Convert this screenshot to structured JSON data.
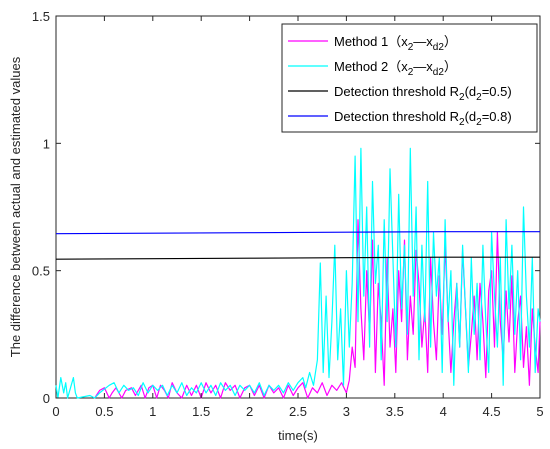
{
  "chart_data": {
    "type": "line",
    "title": "",
    "xlabel": "time(s)",
    "ylabel": "The difference between actual and estimated values",
    "xlim": [
      0,
      5
    ],
    "ylim": [
      0,
      1.5
    ],
    "xticks": [
      0,
      0.5,
      1,
      1.5,
      2,
      2.5,
      3,
      3.5,
      4,
      4.5,
      5
    ],
    "xtick_labels": [
      "0",
      "0.5",
      "1",
      "1.5",
      "2",
      "2.5",
      "3",
      "3.5",
      "4",
      "4.5",
      "5"
    ],
    "yticks": [
      0,
      0.5,
      1,
      1.5
    ],
    "ytick_labels": [
      "0",
      "0.5",
      "1",
      "1.5"
    ],
    "grid": false,
    "legend_position": "top-right",
    "legend": [
      {
        "main": "Method 1（x",
        "sub1": "2",
        "mid": "—x",
        "sub2": "d2",
        "end": "）",
        "color": "#ff00ff"
      },
      {
        "main": "Method 2（x",
        "sub1": "2",
        "mid": "—x",
        "sub2": "d2",
        "end": "）",
        "color": "#00ffff"
      },
      {
        "main": "Detection threshold R",
        "sub1": "2",
        "mid": "(d",
        "sub2": "2",
        "end": "=0.5)",
        "color": "#000000"
      },
      {
        "main": "Detection threshold R",
        "sub1": "2",
        "mid": "(d",
        "sub2": "2",
        "end": "=0.8)",
        "color": "#0000ff"
      }
    ],
    "series": [
      {
        "color": "#ff00ff",
        "x": [
          0.4,
          0.45,
          0.5,
          0.55,
          0.58,
          0.62,
          0.68,
          0.72,
          0.78,
          0.82,
          0.88,
          0.92,
          0.96,
          1.0,
          1.04,
          1.08,
          1.12,
          1.16,
          1.2,
          1.25,
          1.3,
          1.35,
          1.4,
          1.45,
          1.5,
          1.55,
          1.6,
          1.65,
          1.7,
          1.75,
          1.8,
          1.85,
          1.9,
          1.95,
          2.0,
          2.05,
          2.1,
          2.15,
          2.2,
          2.25,
          2.3,
          2.35,
          2.4,
          2.45,
          2.5,
          2.55,
          2.6,
          2.65,
          2.7,
          2.75,
          2.8,
          2.85,
          2.9,
          2.95,
          3.0,
          3.03,
          3.06,
          3.09,
          3.12,
          3.15,
          3.18,
          3.21,
          3.24,
          3.27,
          3.3,
          3.33,
          3.36,
          3.39,
          3.42,
          3.45,
          3.48,
          3.51,
          3.54,
          3.57,
          3.6,
          3.63,
          3.66,
          3.69,
          3.72,
          3.75,
          3.78,
          3.81,
          3.84,
          3.87,
          3.9,
          3.93,
          3.96,
          3.99,
          4.02,
          4.05,
          4.08,
          4.11,
          4.14,
          4.17,
          4.2,
          4.23,
          4.26,
          4.29,
          4.32,
          4.35,
          4.38,
          4.41,
          4.44,
          4.47,
          4.5,
          4.53,
          4.56,
          4.59,
          4.62,
          4.65,
          4.68,
          4.71,
          4.74,
          4.77,
          4.8,
          4.83,
          4.86,
          4.89,
          4.92,
          4.95,
          4.98,
          5.0
        ],
        "y": [
          0,
          0.03,
          0.04,
          0,
          0.02,
          0.04,
          0,
          0.03,
          0.04,
          0.01,
          0.05,
          0,
          0.04,
          0.05,
          0,
          0.05,
          0.03,
          0,
          0.06,
          0.02,
          0,
          0.05,
          0.01,
          0.05,
          0,
          0.06,
          0.02,
          0.05,
          0,
          0.06,
          0.03,
          0.05,
          0,
          0.04,
          0.05,
          0.01,
          0.05,
          0,
          0.05,
          0.02,
          0.04,
          0,
          0.05,
          0.01,
          0.04,
          0.06,
          0,
          0.04,
          0.02,
          0.06,
          0.01,
          0.05,
          0.03,
          0.06,
          0.02,
          0.07,
          0.2,
          0.12,
          0.7,
          0.35,
          0.15,
          0.5,
          0.25,
          0.62,
          0.1,
          0.45,
          0.3,
          0.05,
          0.55,
          0.2,
          0.35,
          0.1,
          0.5,
          0.3,
          0.62,
          0.15,
          0.4,
          0.25,
          0.58,
          0.45,
          0.2,
          0.35,
          0.1,
          0.55,
          0.3,
          0.15,
          0.48,
          0.25,
          0.6,
          0.32,
          0.1,
          0.3,
          0.45,
          0.2,
          0.58,
          0.35,
          0.12,
          0.25,
          0.4,
          0.15,
          0.45,
          0.3,
          0.08,
          0.42,
          0.5,
          0.2,
          0.65,
          0.3,
          0.15,
          0.42,
          0.22,
          0.48,
          0.1,
          0.3,
          0.4,
          0.12,
          0.28,
          0.05,
          0.35,
          0.2,
          0.1,
          0.3
        ]
      },
      {
        "color": "#00ffff",
        "x": [
          0.0,
          0.02,
          0.05,
          0.08,
          0.1,
          0.12,
          0.15,
          0.18,
          0.2,
          0.22,
          0.35,
          0.4,
          0.45,
          0.55,
          0.6,
          0.65,
          0.7,
          0.75,
          0.8,
          0.85,
          0.9,
          0.95,
          1.0,
          1.05,
          1.1,
          1.15,
          1.2,
          1.25,
          1.3,
          1.35,
          1.4,
          1.45,
          1.5,
          1.55,
          1.6,
          1.65,
          1.7,
          1.75,
          1.8,
          1.85,
          1.9,
          1.95,
          2.0,
          2.05,
          2.1,
          2.15,
          2.2,
          2.25,
          2.3,
          2.35,
          2.4,
          2.45,
          2.5,
          2.55,
          2.58,
          2.62,
          2.66,
          2.7,
          2.73,
          2.76,
          2.79,
          2.82,
          2.85,
          2.88,
          2.91,
          2.94,
          2.97,
          3.0,
          3.03,
          3.06,
          3.09,
          3.12,
          3.15,
          3.18,
          3.21,
          3.24,
          3.27,
          3.3,
          3.33,
          3.36,
          3.39,
          3.42,
          3.45,
          3.48,
          3.51,
          3.54,
          3.57,
          3.6,
          3.63,
          3.66,
          3.69,
          3.72,
          3.75,
          3.78,
          3.81,
          3.84,
          3.87,
          3.9,
          3.93,
          3.96,
          3.99,
          4.02,
          4.05,
          4.08,
          4.11,
          4.14,
          4.17,
          4.2,
          4.23,
          4.26,
          4.29,
          4.32,
          4.35,
          4.38,
          4.41,
          4.44,
          4.47,
          4.5,
          4.53,
          4.56,
          4.59,
          4.62,
          4.65,
          4.68,
          4.71,
          4.74,
          4.77,
          4.8,
          4.83,
          4.86,
          4.89,
          4.92,
          4.95,
          4.98,
          5.0
        ],
        "y": [
          0.05,
          0,
          0.08,
          0.02,
          0.06,
          0,
          0.04,
          0.08,
          0.02,
          0,
          0.01,
          0,
          0.02,
          0.05,
          0.06,
          0.02,
          0.05,
          0.03,
          0.04,
          0.01,
          0.06,
          0.02,
          0.05,
          0.03,
          0.05,
          0.01,
          0.05,
          0.02,
          0.06,
          0.01,
          0.04,
          0.02,
          0.06,
          0.02,
          0.05,
          0.01,
          0.06,
          0.03,
          0.05,
          0.01,
          0.05,
          0.03,
          0.05,
          0.02,
          0.06,
          0.01,
          0.05,
          0.03,
          0.05,
          0.02,
          0.06,
          0.03,
          0.06,
          0.08,
          0.04,
          0.1,
          0.05,
          0.15,
          0.53,
          0.1,
          0.4,
          0.08,
          0.3,
          0.6,
          0.15,
          0.35,
          0.05,
          0.5,
          0.2,
          0.45,
          0.95,
          0.3,
          0.98,
          0.4,
          0.75,
          0.2,
          0.85,
          0.45,
          0.6,
          0.15,
          0.7,
          0.3,
          0.9,
          0.55,
          0.2,
          0.8,
          0.35,
          0.6,
          0.25,
          0.98,
          0.4,
          0.75,
          0.15,
          0.6,
          0.3,
          0.85,
          0.2,
          0.65,
          0.4,
          0.55,
          0.1,
          0.7,
          0.3,
          0.5,
          0.05,
          0.45,
          0.2,
          0.6,
          0.35,
          0.1,
          0.55,
          0.25,
          0.45,
          0.15,
          0.6,
          0.3,
          0.1,
          0.65,
          0.4,
          0.2,
          0.55,
          0.05,
          0.7,
          0.35,
          0.6,
          0.25,
          0.5,
          0.15,
          0.75,
          0.4,
          0.2,
          0.55,
          0.1,
          0.35,
          0.3
        ]
      },
      {
        "color": "#000000",
        "x": [
          0,
          1,
          2,
          3,
          4,
          5
        ],
        "y": [
          0.545,
          0.547,
          0.549,
          0.551,
          0.553,
          0.553
        ]
      },
      {
        "color": "#0000ff",
        "x": [
          0,
          1,
          2,
          3,
          4,
          5
        ],
        "y": [
          0.645,
          0.647,
          0.649,
          0.651,
          0.653,
          0.653
        ]
      }
    ]
  }
}
